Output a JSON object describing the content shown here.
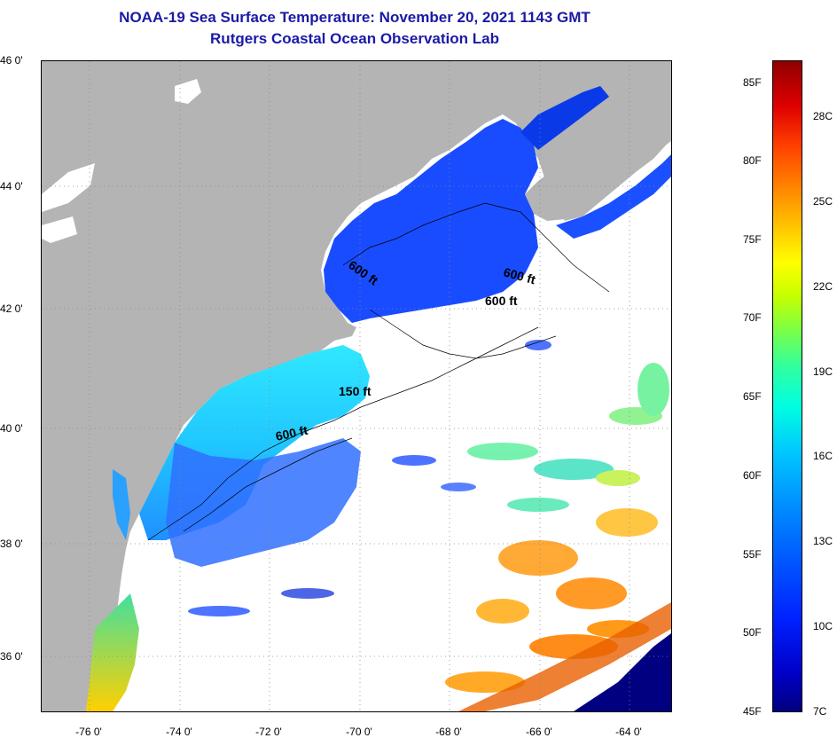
{
  "header": {
    "title": "NOAA-19 Sea Surface Temperature:  November 20, 2021 1143 GMT",
    "subtitle": "Rutgers Coastal Ocean Observation Lab"
  },
  "map": {
    "lat_labels": [
      "46 0'",
      "44 0'",
      "42 0'",
      "40 0'",
      "38 0'",
      "36 0'"
    ],
    "lon_labels": [
      "-76 0'",
      "-74 0'",
      "-72 0'",
      "-70 0'",
      "-68 0'",
      "-66 0'",
      "-64 0'"
    ],
    "contour_labels": [
      "600 ft",
      "600 ft",
      "600 ft",
      "150 ft",
      "600 ft"
    ]
  },
  "colorbar": {
    "fahrenheit": [
      "85F",
      "80F",
      "75F",
      "70F",
      "65F",
      "60F",
      "55F",
      "50F",
      "45F"
    ],
    "celsius": [
      "28C",
      "25C",
      "22C",
      "19C",
      "16C",
      "13C",
      "10C",
      "7C"
    ],
    "colors": [
      "#000080",
      "#0000c8",
      "#0050ff",
      "#00c8ff",
      "#00ffe0",
      "#80ff40",
      "#ffff00",
      "#ff8000",
      "#e00000",
      "#900000"
    ]
  },
  "colors": {
    "land": "#b4b4b4",
    "ocean_nodata": "#ffffff",
    "title": "#1a1aa6"
  }
}
